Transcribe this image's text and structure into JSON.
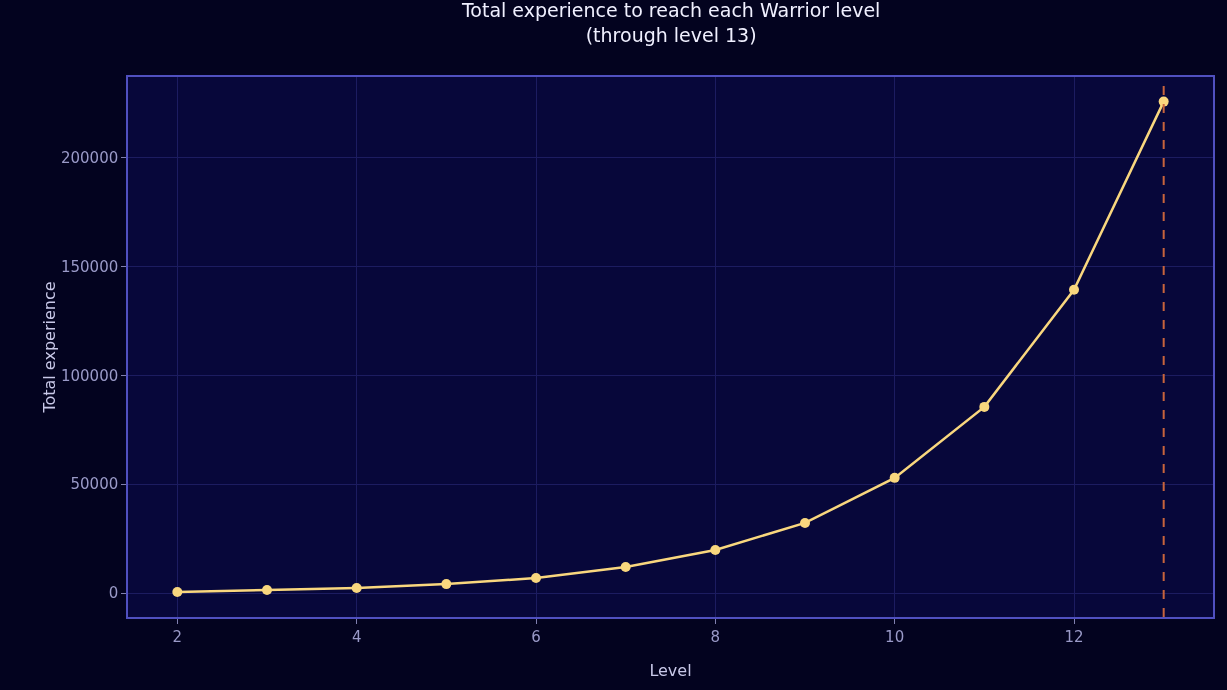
{
  "chart_data": {
    "type": "line",
    "title": "Total experience to reach each Warrior level\n(through level 13)",
    "xlabel": "Level",
    "ylabel": "Total experience",
    "x": [
      2,
      3,
      4,
      5,
      6,
      7,
      8,
      9,
      10,
      11,
      12,
      13
    ],
    "series": [
      {
        "color": "#f9d77e",
        "values": [
          500,
          1400,
          2300,
          4100,
          6900,
          12000,
          19800,
          32200,
          52900,
          85500,
          139300,
          225700
        ]
      }
    ],
    "xlim": [
      1.45,
      13.55
    ],
    "xticks": [
      2,
      4,
      6,
      8,
      10,
      12
    ],
    "ylim": [
      -11000,
      237000
    ],
    "yticks": [
      0,
      50000,
      100000,
      150000,
      200000
    ],
    "grid": true,
    "marker": "circle",
    "line_style": "solid",
    "ref_lines": [
      {
        "axis": "x",
        "value": 13,
        "color": "#c8643c",
        "line_style": "dashed"
      }
    ]
  }
}
